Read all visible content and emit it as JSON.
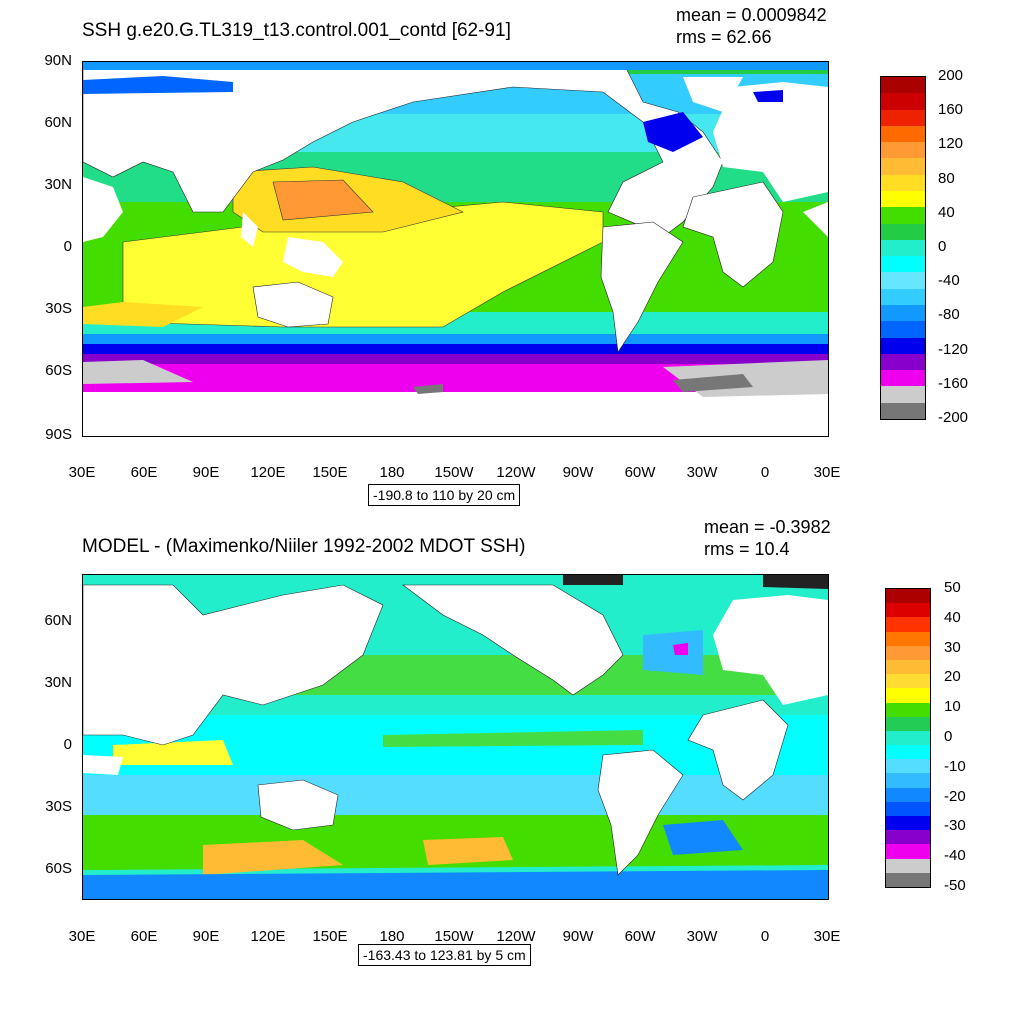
{
  "top_panel": {
    "title": "SSH g.e20.G.TL319_t13.control.001_contd [62-91]",
    "mean": "mean = 0.0009842",
    "rms": "rms = 62.66",
    "lat_labels": [
      "90N",
      "60N",
      "30N",
      "0",
      "30S",
      "60S",
      "90S"
    ],
    "lon_labels": [
      "30E",
      "60E",
      "90E",
      "120E",
      "150E",
      "180",
      "150W",
      "120W",
      "90W",
      "60W",
      "30W",
      "0",
      "30E"
    ],
    "range_note": "-190.8 to 110 by 20 cm",
    "colorbar_labels": [
      "200",
      "160",
      "120",
      "80",
      "40",
      "0",
      "-40",
      "-80",
      "-120",
      "-160",
      "-200"
    ],
    "colorbar_colors": [
      "#aa0000",
      "#cc0000",
      "#ee2200",
      "#ff6a00",
      "#ff9933",
      "#ffbb33",
      "#ffdd22",
      "#ffff00",
      "#44dd00",
      "#22cc44",
      "#22eecc",
      "#00ffff",
      "#66e6ff",
      "#33ccff",
      "#1199ff",
      "#0066ff",
      "#0000ee",
      "#8800cc",
      "#ee00ee",
      "#cccccc",
      "#777777"
    ]
  },
  "bottom_panel": {
    "title": "MODEL - (Maximenko/Niiler 1992-2002 MDOT SSH)",
    "mean": "mean = -0.3982",
    "rms": "rms = 10.4",
    "lat_labels": [
      "60N",
      "30N",
      "0",
      "30S",
      "60S"
    ],
    "lon_labels": [
      "30E",
      "60E",
      "90E",
      "120E",
      "150E",
      "180",
      "150W",
      "120W",
      "90W",
      "60W",
      "30W",
      "0",
      "30E"
    ],
    "range_note": "-163.43 to 123.81 by 5 cm",
    "colorbar_labels": [
      "50",
      "40",
      "30",
      "20",
      "10",
      "0",
      "-10",
      "-20",
      "-30",
      "-40",
      "-50"
    ],
    "colorbar_colors": [
      "#aa0000",
      "#dd0000",
      "#ff3300",
      "#ff7700",
      "#ff9933",
      "#ffbb33",
      "#ffdd33",
      "#ffff00",
      "#44dd00",
      "#22cc55",
      "#22eecc",
      "#00ffff",
      "#55ddff",
      "#33bbff",
      "#1188ff",
      "#0055ff",
      "#0000ee",
      "#8800cc",
      "#ee00ee",
      "#cccccc",
      "#777777"
    ]
  }
}
